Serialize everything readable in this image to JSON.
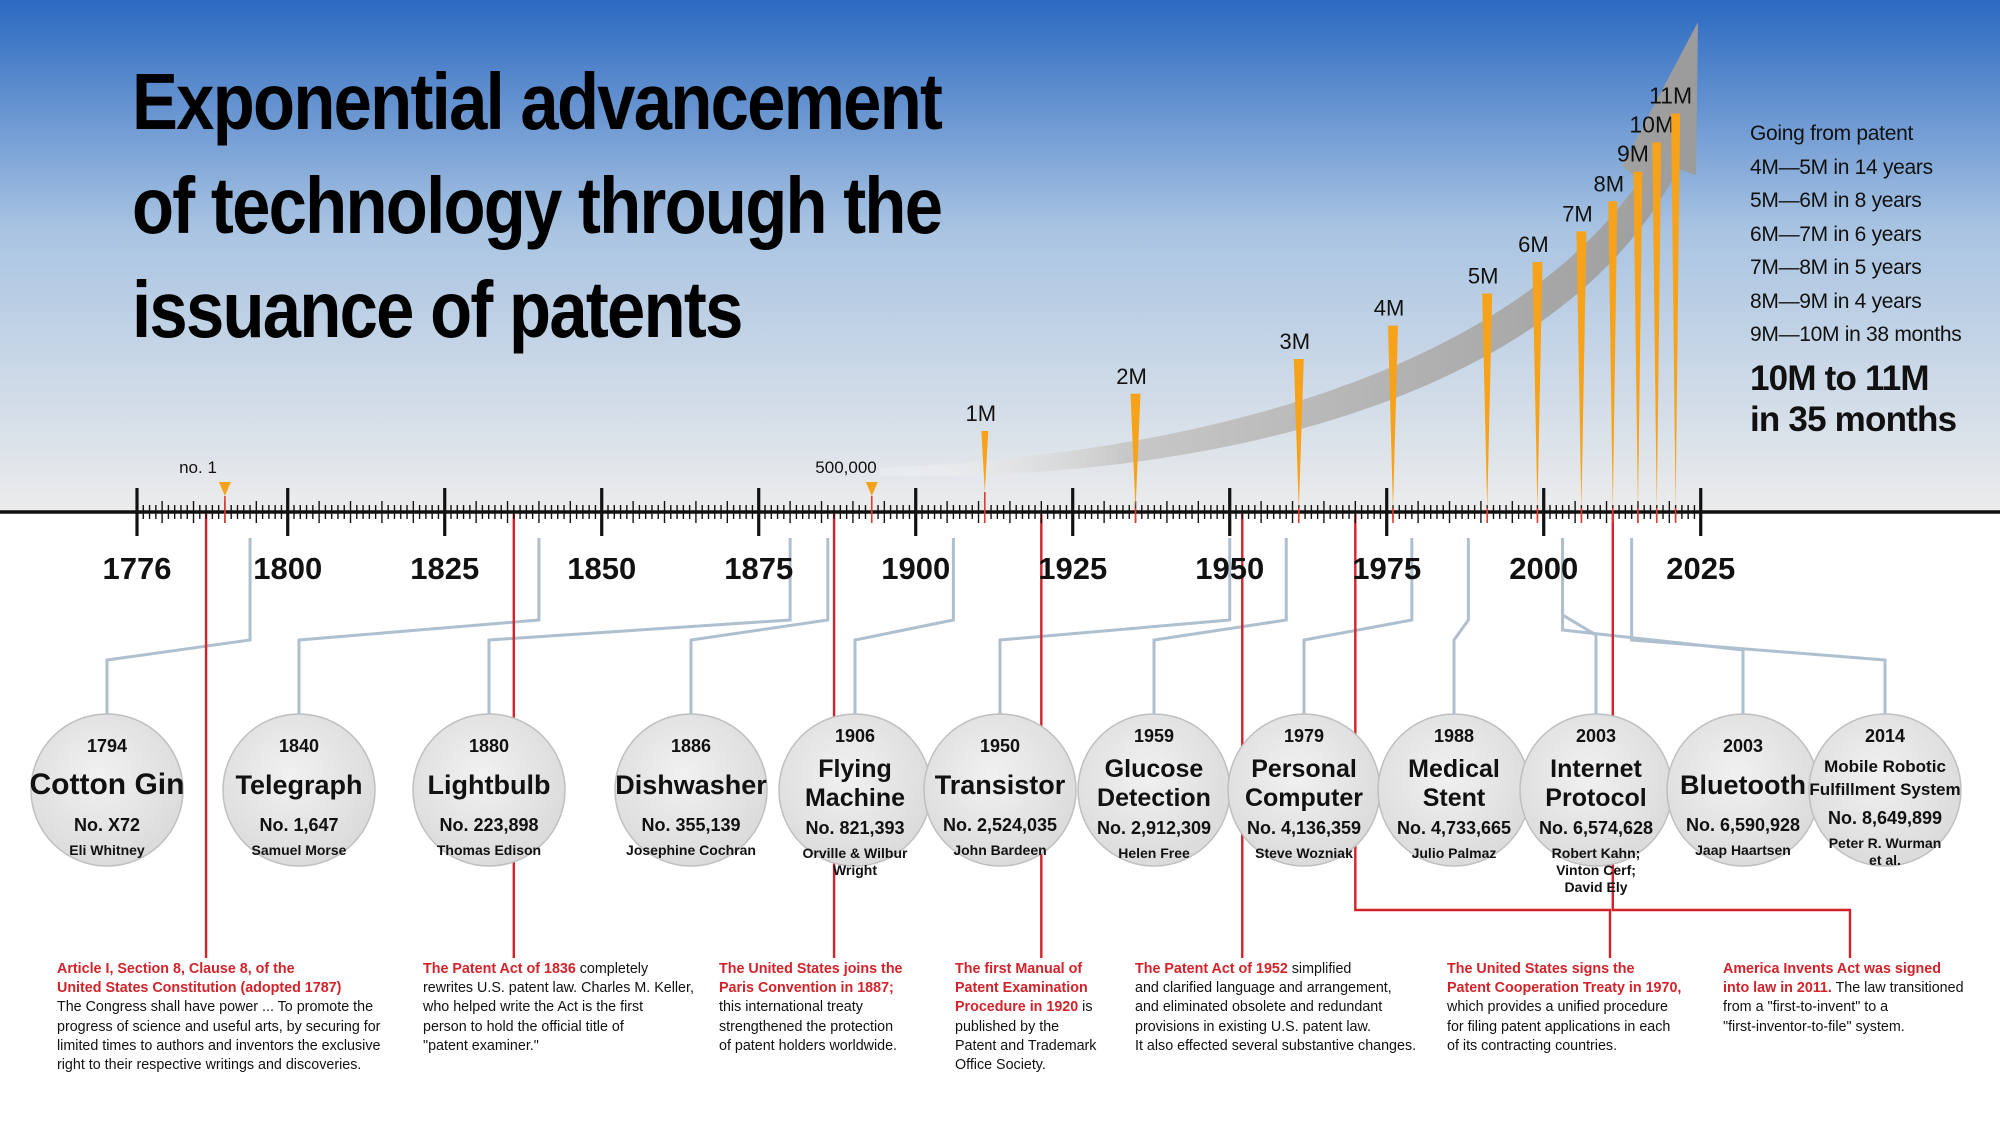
{
  "title": {
    "line1": "Exponential advancement",
    "line2": "of technology through the",
    "line3": "issuance of patents"
  },
  "colors": {
    "sky_top": "#2b69c1",
    "sky_bottom": "#ececec",
    "accent_orange": "#f7a21b",
    "red": "#d3232a",
    "connector": "#aebfcf",
    "circle_fill": "#e6e6e6",
    "arrow_gray": "#a6a6a6"
  },
  "stats": {
    "intro": "Going from patent",
    "rows": [
      "4M—5M in 14 years",
      "5M—6M in 8 years",
      "6M—7M in 6 years",
      "7M—8M in 5 years",
      "8M—9M in 4 years",
      "9M—10M in 38 months"
    ],
    "highlight_line1": "10M to 11M",
    "highlight_line2": "in 35 months"
  },
  "timeline": {
    "start_year": 1776,
    "end_year": 2025,
    "year_labels": [
      {
        "year": 1776,
        "label": "1776"
      },
      {
        "year": 1800,
        "label": "1800"
      },
      {
        "year": 1825,
        "label": "1825"
      },
      {
        "year": 1850,
        "label": "1850"
      },
      {
        "year": 1875,
        "label": "1875"
      },
      {
        "year": 1900,
        "label": "1900"
      },
      {
        "year": 1925,
        "label": "1925"
      },
      {
        "year": 1950,
        "label": "1950"
      },
      {
        "year": 1975,
        "label": "1975"
      },
      {
        "year": 2000,
        "label": "2000"
      },
      {
        "year": 2025,
        "label": "2025"
      }
    ],
    "milestones": [
      {
        "label": "no. 1",
        "year": 1790,
        "value_millions": 0,
        "style": "marker"
      },
      {
        "label": "500,000",
        "year": 1893,
        "value_millions": 0.5,
        "style": "marker"
      },
      {
        "label": "1M",
        "year": 1911,
        "value_millions": 1,
        "style": "spike"
      },
      {
        "label": "2M",
        "year": 1935,
        "value_millions": 2,
        "style": "spike"
      },
      {
        "label": "3M",
        "year": 1961,
        "value_millions": 3,
        "style": "spike"
      },
      {
        "label": "4M",
        "year": 1976,
        "value_millions": 4,
        "style": "spike"
      },
      {
        "label": "5M",
        "year": 1991,
        "value_millions": 5,
        "style": "spike"
      },
      {
        "label": "6M",
        "year": 1999,
        "value_millions": 6,
        "style": "spike"
      },
      {
        "label": "7M",
        "year": 2006,
        "value_millions": 7,
        "style": "spike"
      },
      {
        "label": "8M",
        "year": 2011,
        "value_millions": 8,
        "style": "spike"
      },
      {
        "label": "9M",
        "year": 2015,
        "value_millions": 9,
        "style": "spike"
      },
      {
        "label": "10M",
        "year": 2018,
        "value_millions": 10,
        "style": "spike"
      },
      {
        "label": "11M",
        "year": 2021,
        "value_millions": 11,
        "style": "spike"
      }
    ]
  },
  "inventions": [
    {
      "year": "1794",
      "name_lines": [
        "Cotton Gin"
      ],
      "number": "No. X72",
      "inventor_lines": [
        "Eli Whitney"
      ],
      "timeline_year": 1794
    },
    {
      "year": "1840",
      "name_lines": [
        "Telegraph"
      ],
      "number": "No. 1,647",
      "inventor_lines": [
        "Samuel Morse"
      ],
      "timeline_year": 1840
    },
    {
      "year": "1880",
      "name_lines": [
        "Lightbulb"
      ],
      "number": "No. 223,898",
      "inventor_lines": [
        "Thomas Edison"
      ],
      "timeline_year": 1880
    },
    {
      "year": "1886",
      "name_lines": [
        "Dishwasher"
      ],
      "number": "No. 355,139",
      "inventor_lines": [
        "Josephine Cochran"
      ],
      "timeline_year": 1886
    },
    {
      "year": "1906",
      "name_lines": [
        "Flying",
        "Machine"
      ],
      "number": "No. 821,393",
      "inventor_lines": [
        "Orville & Wilbur",
        "Wright"
      ],
      "timeline_year": 1906
    },
    {
      "year": "1950",
      "name_lines": [
        "Transistor"
      ],
      "number": "No. 2,524,035",
      "inventor_lines": [
        "John Bardeen"
      ],
      "timeline_year": 1950
    },
    {
      "year": "1959",
      "name_lines": [
        "Glucose",
        "Detection"
      ],
      "number": "No. 2,912,309",
      "inventor_lines": [
        "Helen Free"
      ],
      "timeline_year": 1959
    },
    {
      "year": "1979",
      "name_lines": [
        "Personal",
        "Computer"
      ],
      "number": "No. 4,136,359",
      "inventor_lines": [
        "Steve Wozniak"
      ],
      "timeline_year": 1979
    },
    {
      "year": "1988",
      "name_lines": [
        "Medical",
        "Stent"
      ],
      "number": "No. 4,733,665",
      "inventor_lines": [
        "Julio Palmaz"
      ],
      "timeline_year": 1988
    },
    {
      "year": "2003",
      "name_lines": [
        "Internet",
        "Protocol"
      ],
      "number": "No. 6,574,628",
      "inventor_lines": [
        "Robert Kahn;",
        "Vinton Cerf;",
        "David Ely"
      ],
      "timeline_year": 2003
    },
    {
      "year": "2003",
      "name_lines": [
        "Bluetooth"
      ],
      "number": "No. 6,590,928",
      "inventor_lines": [
        "Jaap Haartsen"
      ],
      "timeline_year": 2003
    },
    {
      "year": "2014",
      "name_lines": [
        "Mobile Robotic",
        "Fulfillment System"
      ],
      "number": "No. 8,649,899",
      "inventor_lines": [
        "Peter R. Wurman",
        "et al."
      ],
      "timeline_year": 2014
    }
  ],
  "law_events": [
    {
      "year": 1787,
      "lead_lines": [
        "Article I, Section 8, Clause 8, of the",
        "United States Constitution (adopted 1787)"
      ],
      "body_lines": [
        "The Congress shall have power ... To promote the",
        "progress of science and useful arts, by securing for",
        "limited times to authors and inventors the exclusive",
        "right to their respective writings and discoveries."
      ]
    },
    {
      "year": 1836,
      "lead_lines": [
        "The Patent Act of 1836"
      ],
      "body_lines": [
        " completely",
        "rewrites U.S. patent law. Charles M. Keller,",
        "who helped write the Act is the first",
        "person to hold the official title of",
        "\"patent examiner.\""
      ]
    },
    {
      "year": 1887,
      "lead_lines": [
        "The United States joins the",
        "Paris Convention in 1887;"
      ],
      "body_lines": [
        "this international treaty",
        "strengthened the protection",
        "of patent holders worldwide."
      ]
    },
    {
      "year": 1920,
      "lead_lines": [
        "The first Manual of",
        "Patent Examination",
        "Procedure in 1920"
      ],
      "body_lines": [
        " is",
        "published by the",
        "Patent and Trademark",
        "Office Society."
      ]
    },
    {
      "year": 1952,
      "lead_lines": [
        "The Patent Act of 1952"
      ],
      "body_lines": [
        " simplified",
        "and clarified language and arrangement,",
        "and eliminated obsolete and redundant",
        "provisions in existing U.S. patent law.",
        "It also effected several substantive changes."
      ]
    },
    {
      "year": 1970,
      "lead_lines": [
        "The United States signs the",
        "Patent Cooperation Treaty in 1970,"
      ],
      "body_lines": [
        "which provides a unified procedure",
        "for filing patent applications in each",
        "of its contracting countries."
      ]
    },
    {
      "year": 2011,
      "lead_lines": [
        "America Invents Act was signed",
        "into law in 2011."
      ],
      "body_lines": [
        " The law transitioned",
        "from a \"first-to-invent\" to a",
        "\"first-inventor-to-file\" system."
      ]
    }
  ]
}
